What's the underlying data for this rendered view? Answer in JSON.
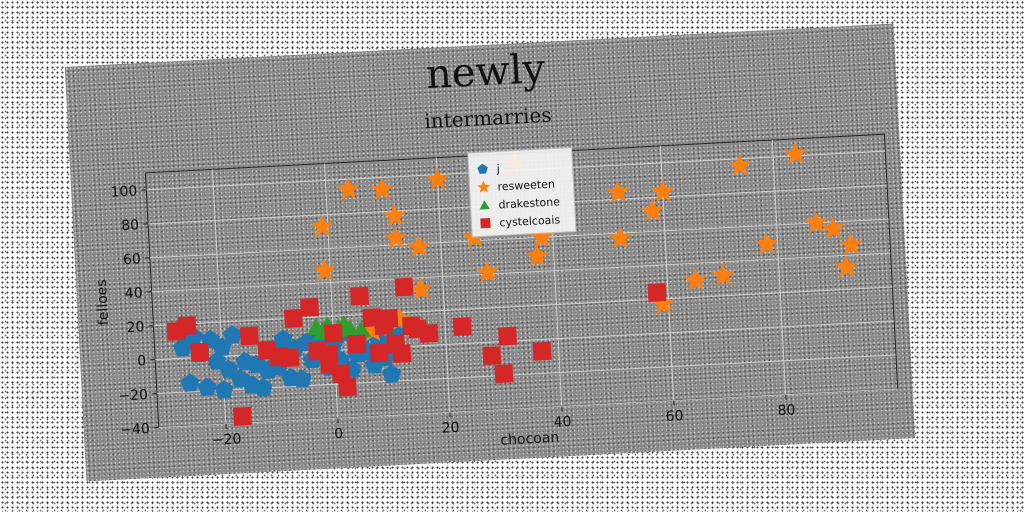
{
  "chart_data": {
    "type": "scatter",
    "suptitle": "newly",
    "title": "intermarries",
    "xlabel": "chocoan",
    "ylabel": "fellоes",
    "xlim": [
      -32,
      100
    ],
    "ylim": [
      -40,
      110
    ],
    "xticks": [
      -20,
      0,
      20,
      40,
      60,
      80
    ],
    "yticks": [
      -40,
      -20,
      0,
      20,
      40,
      60,
      80,
      100
    ],
    "grid": true,
    "legend_position": "upper-center",
    "series": [
      {
        "name": "j",
        "marker": "pentagon",
        "color": "#1f77b4",
        "points": [
          [
            -25,
            12
          ],
          [
            -22,
            10
          ],
          [
            -20,
            5
          ],
          [
            -18,
            12
          ],
          [
            -24,
            2
          ],
          [
            -21,
            -3
          ],
          [
            -19,
            -8
          ],
          [
            -26,
            -15
          ],
          [
            -23,
            -18
          ],
          [
            -20,
            -20
          ],
          [
            -17,
            -14
          ],
          [
            -15,
            -18
          ],
          [
            -14,
            -6
          ],
          [
            -12,
            -10
          ],
          [
            -11,
            2
          ],
          [
            -9,
            8
          ],
          [
            -8,
            -15
          ],
          [
            -6,
            -16
          ],
          [
            -5,
            5
          ],
          [
            -4,
            -5
          ],
          [
            -3,
            8
          ],
          [
            -2,
            3
          ],
          [
            -1,
            -10
          ],
          [
            0,
            4
          ],
          [
            1,
            -6
          ],
          [
            2,
            10
          ],
          [
            3,
            -12
          ],
          [
            4,
            -3
          ],
          [
            5,
            6
          ],
          [
            6,
            -2
          ],
          [
            7,
            -10
          ],
          [
            8,
            4
          ],
          [
            9,
            -6
          ],
          [
            10,
            -16
          ],
          [
            11,
            8
          ],
          [
            -16,
            -4
          ],
          [
            -13,
            -20
          ],
          [
            -10,
            -8
          ],
          [
            -7,
            2
          ],
          [
            -27,
            6
          ]
        ]
      },
      {
        "name": "resweeten",
        "marker": "star",
        "color": "#ff7f0e",
        "points": [
          [
            4,
            94
          ],
          [
            10,
            93
          ],
          [
            12,
            77
          ],
          [
            -1,
            73
          ],
          [
            12,
            64
          ],
          [
            16,
            58
          ],
          [
            20,
            97
          ],
          [
            26,
            62
          ],
          [
            -1,
            47
          ],
          [
            28,
            41
          ],
          [
            16,
            33
          ],
          [
            34,
            104
          ],
          [
            38,
            60
          ],
          [
            37,
            49
          ],
          [
            52,
            84
          ],
          [
            52,
            57
          ],
          [
            58,
            72
          ],
          [
            60,
            83
          ],
          [
            59,
            17
          ],
          [
            65,
            30
          ],
          [
            70,
            32
          ],
          [
            74,
            96
          ],
          [
            78,
            49
          ],
          [
            84,
            101
          ],
          [
            87,
            60
          ],
          [
            90,
            56
          ],
          [
            93,
            46
          ],
          [
            92,
            33
          ],
          [
            12,
            16
          ],
          [
            7,
            10
          ]
        ]
      },
      {
        "name": "drakestone",
        "marker": "triangle",
        "color": "#2ca02c",
        "points": [
          [
            -3,
            14
          ],
          [
            -1,
            15
          ],
          [
            1,
            13
          ],
          [
            3,
            12
          ],
          [
            5,
            11
          ],
          [
            -2,
            11
          ],
          [
            2,
            15
          ]
        ]
      },
      {
        "name": "cystelcoais",
        "marker": "square",
        "color": "#d62728",
        "points": [
          [
            -28,
            16
          ],
          [
            -26,
            19
          ],
          [
            -24,
            3
          ],
          [
            -17,
            -36
          ],
          [
            -15,
            11
          ],
          [
            -12,
            2
          ],
          [
            -10,
            -2
          ],
          [
            -8,
            -3
          ],
          [
            -7,
            20
          ],
          [
            -4,
            26
          ],
          [
            -3,
            0
          ],
          [
            -1,
            -8
          ],
          [
            0,
            10
          ],
          [
            2,
            -22
          ],
          [
            4,
            3
          ],
          [
            5,
            31
          ],
          [
            7,
            18
          ],
          [
            9,
            13
          ],
          [
            10,
            17
          ],
          [
            11,
            2
          ],
          [
            12,
            -4
          ],
          [
            13,
            35
          ],
          [
            14,
            12
          ],
          [
            15,
            10
          ],
          [
            17,
            7
          ],
          [
            23,
            10
          ],
          [
            28,
            -8
          ],
          [
            30,
            -19
          ],
          [
            31,
            3
          ],
          [
            37,
            -7
          ],
          [
            58,
            24
          ],
          [
            -1,
            -2
          ],
          [
            1,
            -14
          ],
          [
            8,
            -3
          ]
        ]
      }
    ]
  }
}
